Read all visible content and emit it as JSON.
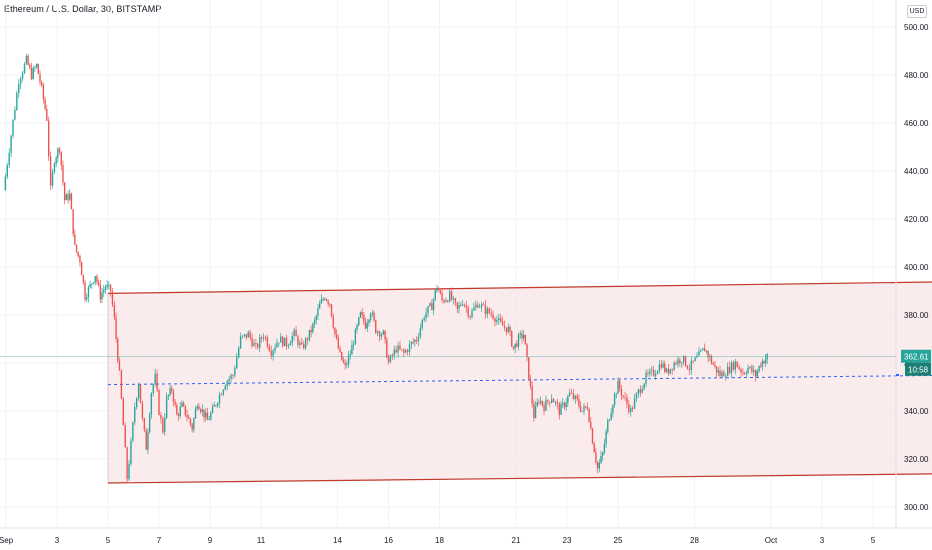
{
  "chart_data": {
    "type": "candlestick",
    "title": "Ethereum / U.S. Dollar, 30, BITSTAMP",
    "currency": "USD",
    "ylim": [
      295,
      505
    ],
    "y_ticks": [
      "300.00",
      "320.00",
      "340.00",
      "360.00",
      "380.00",
      "400.00",
      "420.00",
      "440.00",
      "460.00",
      "480.00",
      "500.00"
    ],
    "y_tick_values": [
      300,
      320,
      340,
      360,
      380,
      400,
      420,
      440,
      460,
      480,
      500
    ],
    "x_ticks": [
      {
        "label": "Sep",
        "day": 1
      },
      {
        "label": "3",
        "day": 3
      },
      {
        "label": "5",
        "day": 5
      },
      {
        "label": "7",
        "day": 7
      },
      {
        "label": "9",
        "day": 9
      },
      {
        "label": "11",
        "day": 11
      },
      {
        "label": "14",
        "day": 14
      },
      {
        "label": "16",
        "day": 16
      },
      {
        "label": "18",
        "day": 18
      },
      {
        "label": "21",
        "day": 21
      },
      {
        "label": "23",
        "day": 23
      },
      {
        "label": "25",
        "day": 25
      },
      {
        "label": "28",
        "day": 28
      },
      {
        "label": "Oct",
        "day": 31
      },
      {
        "label": "3",
        "day": 33
      },
      {
        "label": "5",
        "day": 35
      }
    ],
    "price_path": [
      [
        0.9,
        432
      ],
      [
        1.2,
        455
      ],
      [
        1.5,
        478
      ],
      [
        1.8,
        486
      ],
      [
        2.0,
        480
      ],
      [
        2.2,
        484
      ],
      [
        2.4,
        474
      ],
      [
        2.6,
        462
      ],
      [
        2.75,
        432
      ],
      [
        2.9,
        445
      ],
      [
        3.1,
        450
      ],
      [
        3.3,
        428
      ],
      [
        3.5,
        430
      ],
      [
        3.7,
        408
      ],
      [
        3.9,
        403
      ],
      [
        4.1,
        388
      ],
      [
        4.3,
        392
      ],
      [
        4.5,
        397
      ],
      [
        4.7,
        388
      ],
      [
        4.9,
        392
      ],
      [
        5.1,
        390
      ],
      [
        5.25,
        378
      ],
      [
        5.45,
        355
      ],
      [
        5.6,
        334
      ],
      [
        5.75,
        312
      ],
      [
        5.9,
        326
      ],
      [
        6.05,
        342
      ],
      [
        6.2,
        352
      ],
      [
        6.35,
        336
      ],
      [
        6.5,
        325
      ],
      [
        6.7,
        348
      ],
      [
        6.85,
        354
      ],
      [
        7.0,
        340
      ],
      [
        7.15,
        332
      ],
      [
        7.3,
        345
      ],
      [
        7.5,
        349
      ],
      [
        7.7,
        338
      ],
      [
        7.9,
        342
      ],
      [
        8.1,
        338
      ],
      [
        8.3,
        333
      ],
      [
        8.5,
        344
      ],
      [
        8.7,
        340
      ],
      [
        8.9,
        336
      ],
      [
        9.1,
        340
      ],
      [
        9.3,
        345
      ],
      [
        9.6,
        352
      ],
      [
        9.9,
        355
      ],
      [
        10.2,
        370
      ],
      [
        10.5,
        372
      ],
      [
        10.8,
        366
      ],
      [
        11.1,
        372
      ],
      [
        11.4,
        365
      ],
      [
        11.7,
        370
      ],
      [
        12.0,
        368
      ],
      [
        12.3,
        372
      ],
      [
        12.6,
        366
      ],
      [
        12.9,
        372
      ],
      [
        13.1,
        377
      ],
      [
        13.3,
        384
      ],
      [
        13.5,
        388
      ],
      [
        13.7,
        385
      ],
      [
        13.9,
        372
      ],
      [
        14.1,
        363
      ],
      [
        14.3,
        358
      ],
      [
        14.5,
        364
      ],
      [
        14.7,
        372
      ],
      [
        14.9,
        380
      ],
      [
        15.1,
        376
      ],
      [
        15.3,
        382
      ],
      [
        15.5,
        374
      ],
      [
        15.8,
        372
      ],
      [
        16.0,
        360
      ],
      [
        16.3,
        366
      ],
      [
        16.6,
        364
      ],
      [
        16.9,
        368
      ],
      [
        17.1,
        370
      ],
      [
        17.4,
        380
      ],
      [
        17.7,
        384
      ],
      [
        17.9,
        392
      ],
      [
        18.1,
        386
      ],
      [
        18.4,
        388
      ],
      [
        18.7,
        382
      ],
      [
        18.9,
        386
      ],
      [
        19.2,
        380
      ],
      [
        19.5,
        385
      ],
      [
        19.8,
        382
      ],
      [
        20.1,
        380
      ],
      [
        20.4,
        376
      ],
      [
        20.7,
        374
      ],
      [
        20.9,
        366
      ],
      [
        21.1,
        370
      ],
      [
        21.3,
        372
      ],
      [
        21.5,
        355
      ],
      [
        21.7,
        338
      ],
      [
        21.9,
        345
      ],
      [
        22.1,
        342
      ],
      [
        22.4,
        346
      ],
      [
        22.7,
        340
      ],
      [
        22.9,
        343
      ],
      [
        23.1,
        347
      ],
      [
        23.4,
        344
      ],
      [
        23.6,
        340
      ],
      [
        23.8,
        342
      ],
      [
        24.0,
        328
      ],
      [
        24.2,
        316
      ],
      [
        24.4,
        322
      ],
      [
        24.6,
        335
      ],
      [
        24.8,
        344
      ],
      [
        25.0,
        351
      ],
      [
        25.2,
        346
      ],
      [
        25.5,
        340
      ],
      [
        25.8,
        348
      ],
      [
        26.1,
        354
      ],
      [
        26.4,
        356
      ],
      [
        26.7,
        360
      ],
      [
        26.9,
        356
      ],
      [
        27.2,
        360
      ],
      [
        27.5,
        362
      ],
      [
        27.8,
        358
      ],
      [
        28.1,
        362
      ],
      [
        28.4,
        366
      ],
      [
        28.6,
        362
      ],
      [
        28.8,
        358
      ],
      [
        29.0,
        355
      ],
      [
        29.3,
        357
      ],
      [
        29.6,
        360
      ],
      [
        29.9,
        356
      ],
      [
        30.1,
        358
      ],
      [
        30.4,
        355
      ],
      [
        30.6,
        360
      ],
      [
        30.85,
        362.61
      ]
    ],
    "channel": {
      "upper": {
        "start": [
          5.0,
          389
        ],
        "end": [
          39.0,
          394
        ]
      },
      "lower": {
        "start": [
          5.0,
          310
        ],
        "end": [
          39.0,
          314
        ]
      },
      "fill_color": "#f9e6e8",
      "line_color": "#c0392b"
    },
    "midline": {
      "start": [
        5.0,
        351
      ],
      "end": [
        39.0,
        355
      ],
      "color": "#2962ff",
      "style": "dashed"
    },
    "current_price": {
      "label": "362.61",
      "value": 362.61,
      "color": "#26a69a"
    },
    "countdown": {
      "label": "10:58"
    },
    "colors": {
      "up": "#26a69a",
      "down": "#ef5350",
      "grid": "#f0f3fa",
      "axis_text": "#131722"
    }
  }
}
